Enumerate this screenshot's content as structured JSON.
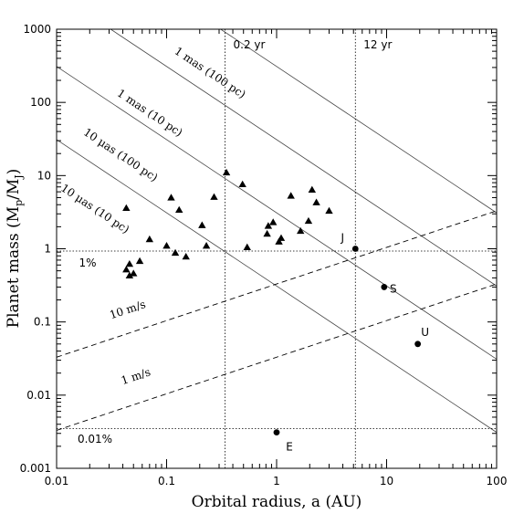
{
  "chart_data": {
    "type": "scatter",
    "title": "",
    "xlabel": "Orbital radius, a (AU)",
    "ylabel": "Planet mass (Mp/MJ)",
    "ylabel_parts": {
      "prefix": "Planet mass (M",
      "sub1": "p",
      "mid": "/M",
      "sub2": "J",
      "suffix": ")"
    },
    "xscale": "log",
    "yscale": "log",
    "xlim": [
      0.01,
      100
    ],
    "ylim": [
      0.001,
      1000
    ],
    "x_ticks": [
      0.01,
      0.1,
      1,
      10,
      100
    ],
    "x_tick_labels": [
      "0.01",
      "0.1",
      "1",
      "10",
      "100"
    ],
    "y_ticks": [
      0.001,
      0.01,
      0.1,
      1,
      10,
      100,
      1000
    ],
    "y_tick_labels": [
      "0.001",
      "0.01",
      "0.1",
      "1",
      "10",
      "100",
      "1000"
    ],
    "grid": false,
    "series": [
      {
        "marker": "triangle",
        "points": [
          [
            0.043,
            3.6
          ],
          [
            0.043,
            0.52
          ],
          [
            0.046,
            0.62
          ],
          [
            0.046,
            0.43
          ],
          [
            0.05,
            0.46
          ],
          [
            0.057,
            0.68
          ],
          [
            0.07,
            1.35
          ],
          [
            0.1,
            1.1
          ],
          [
            0.11,
            5.0
          ],
          [
            0.12,
            0.88
          ],
          [
            0.13,
            3.4
          ],
          [
            0.15,
            0.78
          ],
          [
            0.21,
            2.1
          ],
          [
            0.23,
            1.1
          ],
          [
            0.27,
            5.1
          ],
          [
            0.35,
            11.0
          ],
          [
            0.49,
            7.6
          ],
          [
            0.54,
            1.05
          ],
          [
            0.82,
            1.6
          ],
          [
            0.84,
            2.05
          ],
          [
            0.93,
            2.3
          ],
          [
            1.05,
            1.25
          ],
          [
            1.1,
            1.4
          ],
          [
            1.35,
            5.3
          ],
          [
            1.65,
            1.75
          ],
          [
            1.95,
            2.4
          ],
          [
            2.1,
            6.4
          ],
          [
            2.3,
            4.3
          ],
          [
            3.0,
            3.3
          ]
        ]
      },
      {
        "marker": "circle",
        "points": [
          {
            "x": 1.0,
            "y": 0.0031,
            "label": "E"
          },
          {
            "x": 5.2,
            "y": 1.0,
            "label": "J"
          },
          {
            "x": 9.5,
            "y": 0.3,
            "label": "S"
          },
          {
            "x": 19.2,
            "y": 0.05,
            "label": "U"
          }
        ]
      }
    ],
    "reference_lines": {
      "astrometry": [
        {
          "label": "1 mas (100 pc)",
          "y_at_a1": 310
        },
        {
          "label": "1 mas (10 pc)",
          "y_at_a1": 31
        },
        {
          "label": "10 μas (100 pc)",
          "y_at_a1": 3.1
        },
        {
          "label": "10 μas (10 pc)",
          "y_at_a1": 0.31
        }
      ],
      "radial_velocity": [
        {
          "label": "10 m/s",
          "y_at_a1": 0.33
        },
        {
          "label": "1 m/s",
          "y_at_a1": 0.033
        }
      ],
      "mass_levels": [
        {
          "label": "1%",
          "y": 0.93
        },
        {
          "label": "0.01%",
          "y": 0.0035
        }
      ],
      "period_lines": [
        {
          "label": "0.2 yr",
          "x": 0.34
        },
        {
          "label": "12 yr",
          "x": 5.2
        }
      ]
    }
  }
}
